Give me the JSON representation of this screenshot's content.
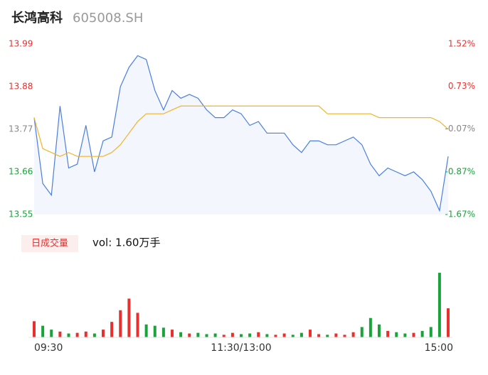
{
  "chart_data": {
    "type": "intraday",
    "title": "长鸿高科",
    "code": "605008.SH",
    "categories": [
      "09:30",
      null,
      null,
      null,
      null,
      null,
      null,
      null,
      null,
      null,
      null,
      null,
      null,
      null,
      null,
      null,
      null,
      null,
      null,
      null,
      null,
      null,
      null,
      null,
      "11:30/13:00",
      null,
      null,
      null,
      null,
      null,
      null,
      null,
      null,
      null,
      null,
      null,
      null,
      null,
      null,
      null,
      null,
      null,
      null,
      null,
      null,
      null,
      null,
      null,
      "15:00"
    ],
    "series": [
      {
        "name": "price",
        "color": "#4a7fe0",
        "values": [
          13.8,
          13.63,
          13.6,
          13.83,
          13.67,
          13.68,
          13.78,
          13.66,
          13.74,
          13.75,
          13.88,
          13.93,
          13.96,
          13.95,
          13.87,
          13.82,
          13.87,
          13.85,
          13.86,
          13.85,
          13.82,
          13.8,
          13.8,
          13.82,
          13.81,
          13.78,
          13.79,
          13.76,
          13.76,
          13.76,
          13.73,
          13.71,
          13.74,
          13.74,
          13.73,
          13.73,
          13.74,
          13.75,
          13.73,
          13.68,
          13.65,
          13.67,
          13.66,
          13.65,
          13.66,
          13.64,
          13.61,
          13.56,
          13.7
        ]
      },
      {
        "name": "average",
        "color": "#f0b429",
        "values": [
          13.8,
          13.72,
          13.71,
          13.7,
          13.71,
          13.7,
          13.7,
          13.7,
          13.7,
          13.71,
          13.73,
          13.76,
          13.79,
          13.81,
          13.81,
          13.81,
          13.82,
          13.83,
          13.83,
          13.83,
          13.83,
          13.83,
          13.83,
          13.83,
          13.83,
          13.83,
          13.83,
          13.83,
          13.83,
          13.83,
          13.83,
          13.83,
          13.83,
          13.83,
          13.81,
          13.81,
          13.81,
          13.81,
          13.81,
          13.81,
          13.8,
          13.8,
          13.8,
          13.8,
          13.8,
          13.8,
          13.8,
          13.79,
          13.77
        ]
      }
    ],
    "ylim": [
      13.55,
      13.99
    ],
    "yticks": [
      13.55,
      13.66,
      13.77,
      13.88,
      13.99
    ],
    "ytick_colors": [
      "#1aa33a",
      "#1aa33a",
      "#888888",
      "#e8312f",
      "#e8312f"
    ],
    "y2lim": [
      -1.67,
      1.52
    ],
    "y2ticks": [
      {
        "value": -1.67,
        "label": "-1.67%"
      },
      {
        "value": -0.87,
        "label": "-0.87%"
      },
      {
        "value": -0.07,
        "label": "-0.07%"
      },
      {
        "value": 0.73,
        "label": "0.73%"
      },
      {
        "value": 1.52,
        "label": "1.52%"
      }
    ],
    "volume": {
      "legend": "日成交量",
      "summary": "vol: 1.60万手",
      "ylim": [
        0,
        1100
      ],
      "up_color": "#e8312f",
      "down_color": "#1aa33a",
      "values": [
        250,
        180,
        120,
        90,
        60,
        70,
        90,
        60,
        120,
        240,
        420,
        600,
        380,
        200,
        180,
        150,
        120,
        80,
        60,
        70,
        50,
        60,
        40,
        70,
        50,
        60,
        80,
        50,
        40,
        60,
        40,
        70,
        120,
        50,
        40,
        60,
        40,
        80,
        160,
        300,
        200,
        100,
        80,
        60,
        70,
        100,
        160,
        1000,
        450
      ]
    }
  }
}
